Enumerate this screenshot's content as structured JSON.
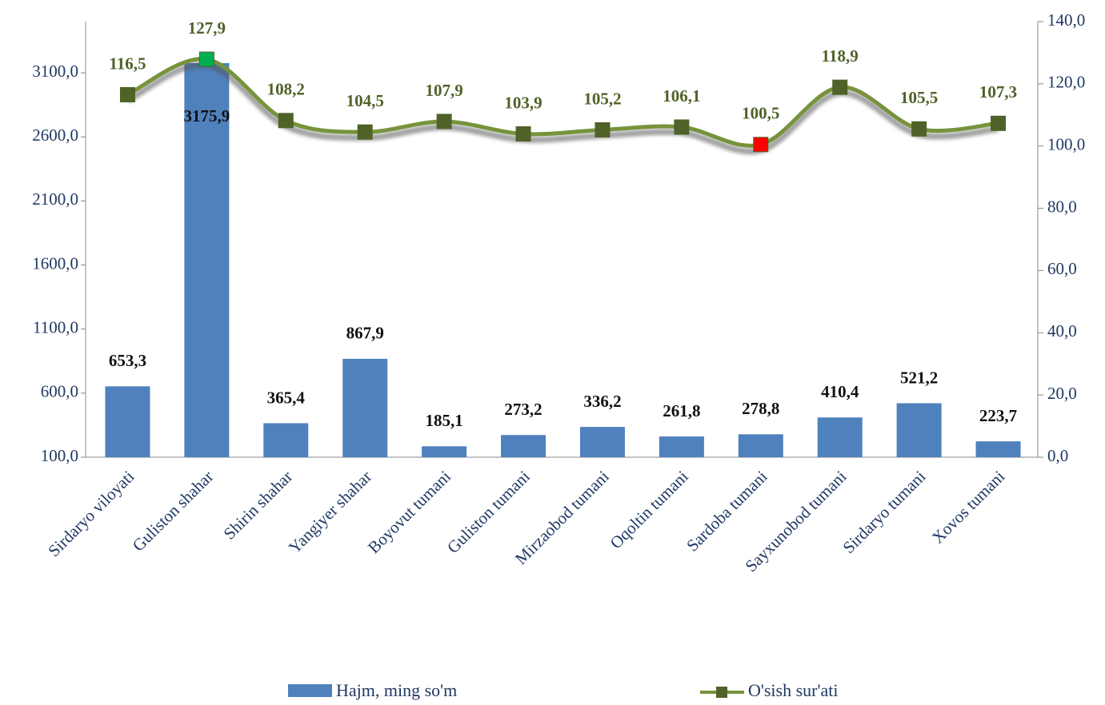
{
  "chart_data": {
    "type": "bar_line",
    "categories": [
      "Sirdaryo viloyati",
      "Guliston shahar",
      "Shirin shahar",
      "Yangiyer shahar",
      "Boyovut tumani",
      "Guliston tumani",
      "Mirzaobod tumani",
      "Oqoltin tumani",
      "Sardoba tumani",
      "Sayxunobod tumani",
      "Sirdaryo tumani",
      "Xovos tumani"
    ],
    "series": [
      {
        "name": "Hajm, ming so'm",
        "type": "bar",
        "color": "#4f81bd",
        "values": [
          653.3,
          3175.9,
          365.4,
          867.9,
          185.1,
          273.2,
          336.2,
          261.8,
          278.8,
          410.4,
          521.2,
          223.7
        ],
        "value_labels": [
          "653,3",
          "3175,9",
          "365,4",
          "867,9",
          "185,1",
          "273,2",
          "336,2",
          "261,8",
          "278,8",
          "410,4",
          "521,2",
          "223,7"
        ]
      },
      {
        "name": "O'sish sur'ati",
        "type": "line",
        "axis": "y2",
        "color": "#77933c",
        "marker_colors": [
          "#4f6228",
          "#00b050",
          "#4f6228",
          "#4f6228",
          "#4f6228",
          "#4f6228",
          "#4f6228",
          "#4f6228",
          "#ff0000",
          "#4f6228",
          "#4f6228",
          "#4f6228"
        ],
        "values": [
          116.5,
          127.9,
          108.2,
          104.5,
          107.9,
          103.9,
          105.2,
          106.1,
          100.5,
          118.9,
          105.5,
          107.3
        ],
        "value_labels": [
          "116,5",
          "127,9",
          "108,2",
          "104,5",
          "107,9",
          "103,9",
          "105,2",
          "106,1",
          "100,5",
          "118,9",
          "105,5",
          "107,3"
        ]
      }
    ],
    "ylim": [
      100,
      3500
    ],
    "yticks": [
      {
        "value": 100,
        "label": "100,0"
      },
      {
        "value": 600,
        "label": "600,0"
      },
      {
        "value": 1100,
        "label": "1100,0"
      },
      {
        "value": 1600,
        "label": "1600,0"
      },
      {
        "value": 2100,
        "label": "2100,0"
      },
      {
        "value": 2600,
        "label": "2600,0"
      },
      {
        "value": 3100,
        "label": "3100,0"
      }
    ],
    "y2lim": [
      0,
      140
    ],
    "y2ticks": [
      {
        "value": 0,
        "label": "0,0"
      },
      {
        "value": 20,
        "label": "20,0"
      },
      {
        "value": 40,
        "label": "40,0"
      },
      {
        "value": 60,
        "label": "60,0"
      },
      {
        "value": 80,
        "label": "80,0"
      },
      {
        "value": 100,
        "label": "100,0"
      },
      {
        "value": 120,
        "label": "120,0"
      },
      {
        "value": 140,
        "label": "140,0"
      }
    ],
    "legend": "bottom"
  }
}
